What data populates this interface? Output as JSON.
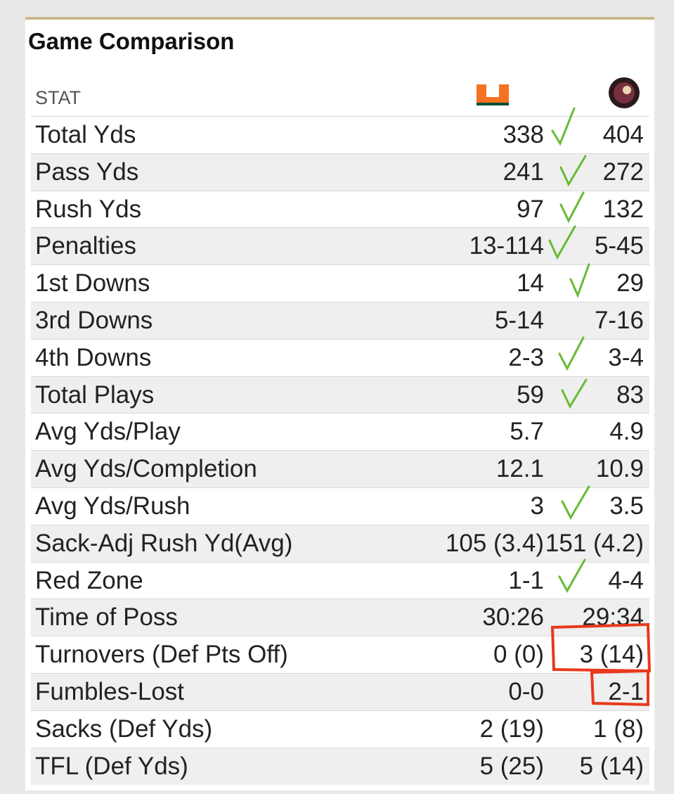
{
  "header": {
    "title": "Game Comparison",
    "stat_label": "STAT"
  },
  "table": {
    "rows": [
      [
        "Total Yds",
        "338",
        "404"
      ],
      [
        "Pass Yds",
        "241",
        "272"
      ],
      [
        "Rush Yds",
        "97",
        "132"
      ],
      [
        "Penalties",
        "13-114",
        "5-45"
      ],
      [
        "1st Downs",
        "14",
        "29"
      ],
      [
        "3rd Downs",
        "5-14",
        "7-16"
      ],
      [
        "4th Downs",
        "2-3",
        "3-4"
      ],
      [
        "Total Plays",
        "59",
        "83"
      ],
      [
        "Avg Yds/Play",
        "5.7",
        "4.9"
      ],
      [
        "Avg Yds/Completion",
        "12.1",
        "10.9"
      ],
      [
        "Avg Yds/Rush",
        "3",
        "3.5"
      ],
      [
        "Sack-Adj Rush Yd(Avg)",
        "105 (3.4)",
        "151 (4.2)"
      ],
      [
        "Red Zone",
        "1-1",
        "4-4"
      ],
      [
        "Time of Poss",
        "30:26",
        "29:34"
      ],
      [
        "Turnovers (Def Pts Off)",
        "0 (0)",
        "3 (14)"
      ],
      [
        "Fumbles-Lost",
        "0-0",
        "2-1"
      ],
      [
        "Sacks (Def Yds)",
        "2 (19)",
        "1 (8)"
      ],
      [
        "TFL (Def Yds)",
        "5 (25)",
        "5 (14)"
      ]
    ]
  }
}
